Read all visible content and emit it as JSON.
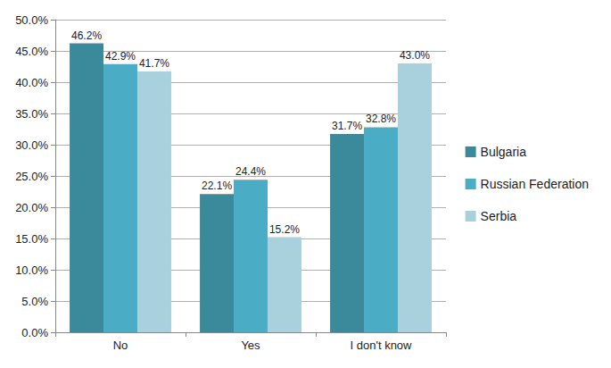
{
  "chart_data": {
    "type": "bar",
    "categories": [
      "No",
      "Yes",
      "I don't know"
    ],
    "series": [
      {
        "name": "Bulgaria",
        "color": "#3b8a9b",
        "values": [
          46.2,
          22.1,
          31.7
        ],
        "value_labels": [
          "46.2%",
          "22.1%",
          "31.7%"
        ]
      },
      {
        "name": "Russian Federation",
        "color": "#4bacc6",
        "values": [
          42.9,
          24.4,
          32.8
        ],
        "value_labels": [
          "42.9%",
          "24.4%",
          "32.8%"
        ]
      },
      {
        "name": "Serbia",
        "color": "#a9d0dd",
        "values": [
          41.7,
          15.2,
          43.0
        ],
        "value_labels": [
          "41.7%",
          "15.2%",
          "43.0%"
        ]
      }
    ],
    "ylim": [
      0,
      50
    ],
    "yticks": [
      {
        "value": 0,
        "label": "0.0%"
      },
      {
        "value": 5,
        "label": "5.0%"
      },
      {
        "value": 10,
        "label": "10.0%"
      },
      {
        "value": 15,
        "label": "15.0%"
      },
      {
        "value": 20,
        "label": "20.0%"
      },
      {
        "value": 25,
        "label": "25.0%"
      },
      {
        "value": 30,
        "label": "30.0%"
      },
      {
        "value": 35,
        "label": "35.0%"
      },
      {
        "value": 40,
        "label": "40.0%"
      },
      {
        "value": 45,
        "label": "45.0%"
      },
      {
        "value": 50,
        "label": "50.0%"
      }
    ],
    "grid": true,
    "legend": "right",
    "data_labels": true
  }
}
